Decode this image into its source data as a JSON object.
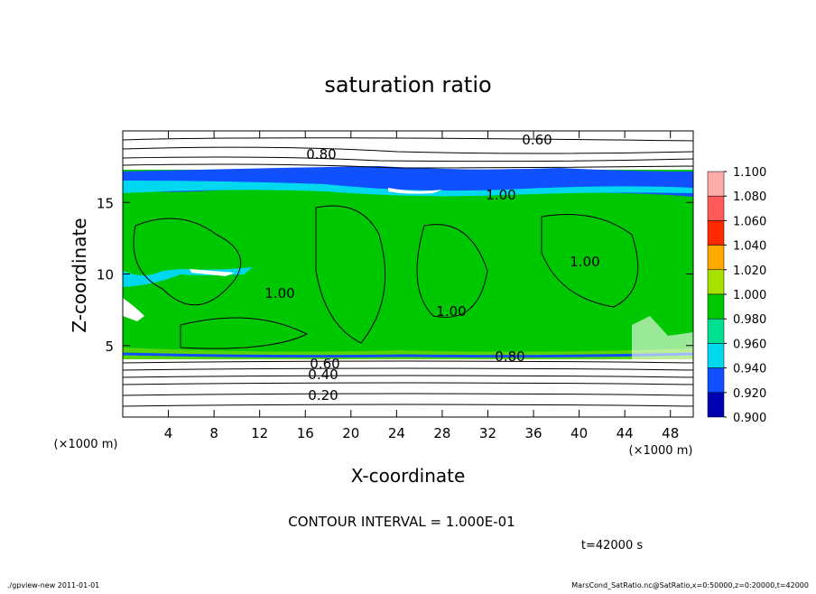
{
  "chart_data": {
    "type": "contour",
    "title": "saturation ratio",
    "x_label": "X-coordinate",
    "y_label": "Z-coordinate",
    "x_unit": "(×1000 m)",
    "y_unit": "(×1000 m)",
    "xlim": [
      0,
      50
    ],
    "ylim": [
      0,
      20
    ],
    "xticks": [
      4,
      8,
      12,
      16,
      20,
      24,
      28,
      32,
      36,
      40,
      44,
      48
    ],
    "yticks": [
      5,
      10,
      15
    ],
    "contour_labels": [
      "0.60",
      "0.80",
      "1.00",
      "1.00",
      "1.00",
      "1.00",
      "0.80",
      "0.60",
      "0.40",
      "0.20"
    ],
    "colorbar": {
      "ticks": [
        {
          "value": 1.1,
          "label": "1.100"
        },
        {
          "value": 1.08,
          "label": "1.080"
        },
        {
          "value": 1.06,
          "label": "1.060"
        },
        {
          "value": 1.04,
          "label": "1.040"
        },
        {
          "value": 1.02,
          "label": "1.020"
        },
        {
          "value": 1.0,
          "label": "1.000"
        },
        {
          "value": 0.98,
          "label": "0.980"
        },
        {
          "value": 0.96,
          "label": "0.960"
        },
        {
          "value": 0.94,
          "label": "0.940"
        },
        {
          "value": 0.92,
          "label": "0.920"
        },
        {
          "value": 0.9,
          "label": "0.900"
        }
      ],
      "colors": [
        "#ffaaaa",
        "#ff5a5a",
        "#ff2a00",
        "#ffa800",
        "#a8e000",
        "#00c800",
        "#00e090",
        "#00d8f0",
        "#1050ff",
        "#0000b0"
      ]
    },
    "contour_interval": "CONTOUR INTERVAL = 1.000E-01",
    "time_label": "t=42000 s",
    "footer_left": "./gpview-new   2011-01-01",
    "footer_right": "MarsCond_SatRatio.nc@SatRatio,x=0:50000,z=0:20000,t=42000"
  }
}
